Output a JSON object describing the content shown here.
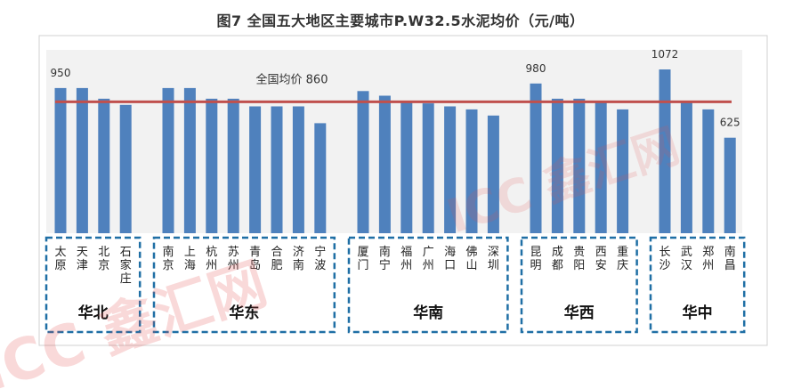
{
  "chart_data": {
    "type": "bar",
    "title": "图7 全国五大地区主要城市P.W32.5水泥均价（元/吨）",
    "categories": [
      "太原",
      "天津",
      "北京",
      "石家庄",
      "南京",
      "上海",
      "杭州",
      "苏州",
      "青岛",
      "合肥",
      "济南",
      "宁波",
      "厦门",
      "南宁",
      "福州",
      "广州",
      "海口",
      "佛山",
      "深圳",
      "昆明",
      "成都",
      "贵阳",
      "西安",
      "重庆",
      "长沙",
      "武汉",
      "郑州",
      "南昌"
    ],
    "category_labels": [
      [
        "太",
        "原"
      ],
      [
        "天",
        "津"
      ],
      [
        "北",
        "京"
      ],
      [
        "石",
        "家",
        "庄"
      ],
      [
        "南",
        "京"
      ],
      [
        "上",
        "海"
      ],
      [
        "杭",
        "州"
      ],
      [
        "苏",
        "州"
      ],
      [
        "青",
        "岛"
      ],
      [
        "合",
        "肥"
      ],
      [
        "济",
        "南"
      ],
      [
        "宁",
        "波"
      ],
      [
        "厦",
        "门"
      ],
      [
        "南",
        "宁"
      ],
      [
        "福",
        "州"
      ],
      [
        "广",
        "州"
      ],
      [
        "海",
        "口"
      ],
      [
        "佛",
        "山"
      ],
      [
        "深",
        "圳"
      ],
      [
        "昆",
        "明"
      ],
      [
        "成",
        "都"
      ],
      [
        "贵",
        "阳"
      ],
      [
        "西",
        "安"
      ],
      [
        "重",
        "庆"
      ],
      [
        "长",
        "沙"
      ],
      [
        "武",
        "汉"
      ],
      [
        "郑",
        "州"
      ],
      [
        "南",
        "昌"
      ]
    ],
    "values": [
      950,
      950,
      880,
      840,
      950,
      950,
      880,
      880,
      830,
      830,
      830,
      720,
      930,
      900,
      860,
      850,
      830,
      810,
      770,
      980,
      880,
      880,
      860,
      810,
      1072,
      860,
      810,
      625
    ],
    "value_labels": [
      {
        "index": 0,
        "text": "950"
      },
      {
        "index": 19,
        "text": "980"
      },
      {
        "index": 24,
        "text": "1072"
      },
      {
        "index": 27,
        "text": "625"
      }
    ],
    "reference_line": {
      "value": 860,
      "label": "全国均价  860"
    },
    "groups": [
      {
        "name": "华北",
        "start": 0,
        "end": 3
      },
      {
        "name": "华东",
        "start": 4,
        "end": 11
      },
      {
        "name": "华南",
        "start": 12,
        "end": 18
      },
      {
        "name": "华西",
        "start": 19,
        "end": 23
      },
      {
        "name": "华中",
        "start": 24,
        "end": 27
      }
    ],
    "ylim": [
      0,
      1200
    ],
    "bar_color": "#4f81bd",
    "line_color": "#c0504d",
    "group_box_color": "#1f6fa5",
    "plot_background": "#f2f2f2"
  },
  "watermark": "ICC 鑫汇网"
}
